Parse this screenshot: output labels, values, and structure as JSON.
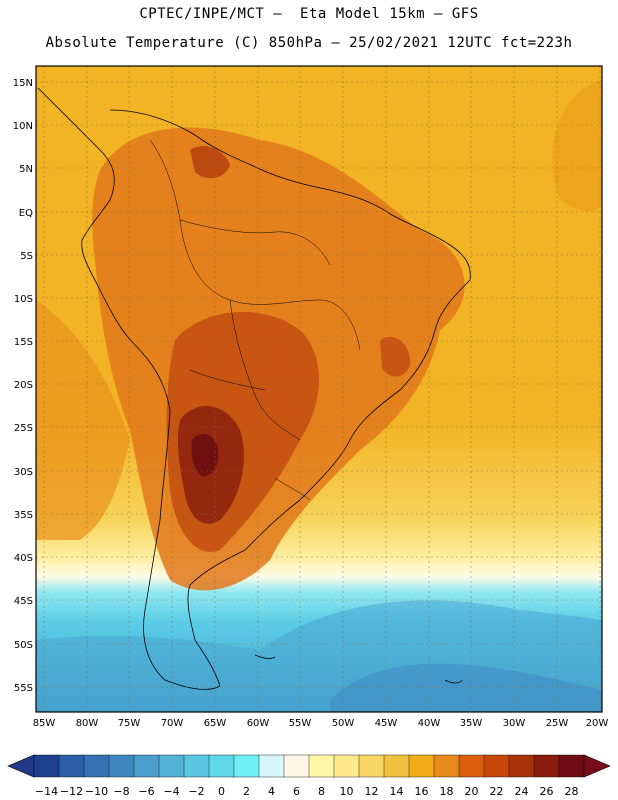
{
  "header": {
    "line1": "CPTEC/INPE/MCT –  Eta Model 15km – GFS",
    "line2": "Absolute Temperature (C) 850hPa – 25/02/2021 12UTC fct=223h"
  },
  "axes": {
    "lat_labels": [
      "15N",
      "10N",
      "5N",
      "EQ",
      "5S",
      "10S",
      "15S",
      "20S",
      "25S",
      "30S",
      "35S",
      "40S",
      "45S",
      "50S",
      "55S"
    ],
    "lon_labels": [
      "85W",
      "80W",
      "75W",
      "70W",
      "65W",
      "60W",
      "55W",
      "50W",
      "45W",
      "40W",
      "35W",
      "30W",
      "25W",
      "20W"
    ]
  },
  "colorbar": {
    "labels": [
      "-14",
      "-12",
      "-10",
      "-8",
      "-6",
      "-4",
      "-2",
      "0",
      "2",
      "4",
      "6",
      "8",
      "10",
      "12",
      "14",
      "16",
      "18",
      "20",
      "22",
      "24",
      "26",
      "28"
    ],
    "colors": [
      "#1f3f8f",
      "#2b5ea7",
      "#3572b3",
      "#3f86bf",
      "#4a9ecb",
      "#52b3d6",
      "#59c6e0",
      "#61d8ea",
      "#6ef0f4",
      "#d9f7fb",
      "#fff7e6",
      "#fff6a6",
      "#fde98a",
      "#f8d665",
      "#f2c03f",
      "#efac16",
      "#e8891c",
      "#db5e0c",
      "#c74708",
      "#a83309",
      "#8a1c0e",
      "#6e0d14"
    ],
    "under_color": "#223a8a",
    "over_color": "#7a0b1c"
  }
}
